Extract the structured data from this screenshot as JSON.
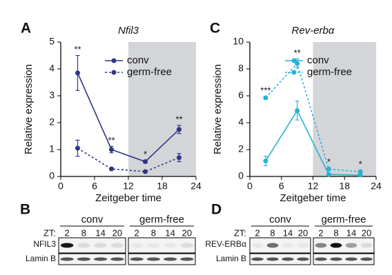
{
  "chart_data": [
    {
      "type": "line",
      "panel": "A",
      "title": "Nfil3",
      "x_label": "Zeitgeber time",
      "y_label": "Relative expression",
      "x": [
        3,
        9,
        15,
        21
      ],
      "xlim": [
        0,
        24
      ],
      "xticks": [
        0,
        6,
        12,
        18,
        24
      ],
      "ylim": [
        0,
        5
      ],
      "yticks": [
        0,
        1,
        2,
        3,
        4,
        5
      ],
      "shaded_x": [
        12,
        24
      ],
      "legend": "upper right",
      "series": [
        {
          "name": "conv",
          "color": "#2e3585",
          "style": "solid",
          "values": [
            3.85,
            1.0,
            0.55,
            1.75
          ],
          "errors": [
            0.65,
            0.12,
            0.05,
            0.15
          ]
        },
        {
          "name": "germ-free",
          "color": "#2e3585",
          "style": "dashed",
          "values": [
            1.05,
            0.28,
            0.18,
            0.7
          ],
          "errors": [
            0.3,
            0.04,
            0.03,
            0.15
          ]
        }
      ],
      "significance": [
        "**",
        "**",
        "*",
        "**"
      ]
    },
    {
      "type": "line",
      "panel": "C",
      "title": "Rev-erbα",
      "x_label": "Zeitgeber time",
      "y_label": "Relative expression",
      "x": [
        3,
        9,
        15,
        21
      ],
      "xlim": [
        0,
        24
      ],
      "xticks": [
        0,
        6,
        12,
        18,
        24
      ],
      "ylim": [
        0,
        10
      ],
      "yticks": [
        0,
        2,
        4,
        6,
        8,
        10
      ],
      "shaded_x": [
        12,
        24
      ],
      "legend": "upper right",
      "series": [
        {
          "name": "conv",
          "color": "#27b2d6",
          "style": "solid",
          "values": [
            1.15,
            4.9,
            0.15,
            0.1
          ],
          "errors": [
            0.35,
            0.7,
            0.1,
            0.05
          ]
        },
        {
          "name": "germ-free",
          "color": "#27b2d6",
          "style": "dashed",
          "values": [
            5.85,
            8.4,
            0.55,
            0.35
          ],
          "errors": [
            0.1,
            0.35,
            0.1,
            0.1
          ]
        }
      ],
      "significance": [
        "***",
        "**",
        "*",
        "*"
      ]
    }
  ],
  "blots": [
    {
      "panel": "B",
      "zt_label": "ZT:",
      "rows": [
        "NFIL3",
        "Lamin B"
      ],
      "groups": [
        {
          "name": "conv",
          "lanes": [
            "2",
            "8",
            "14",
            "20"
          ]
        },
        {
          "name": "germ-free",
          "lanes": [
            "2",
            "8",
            "14",
            "20"
          ]
        }
      ]
    },
    {
      "panel": "D",
      "zt_label": "ZT:",
      "rows": [
        "REV-ERBα",
        "Lamin B"
      ],
      "groups": [
        {
          "name": "conv",
          "lanes": [
            "2",
            "8",
            "14",
            "20"
          ]
        },
        {
          "name": "germ-free",
          "lanes": [
            "2",
            "8",
            "14",
            "20"
          ]
        }
      ]
    }
  ]
}
